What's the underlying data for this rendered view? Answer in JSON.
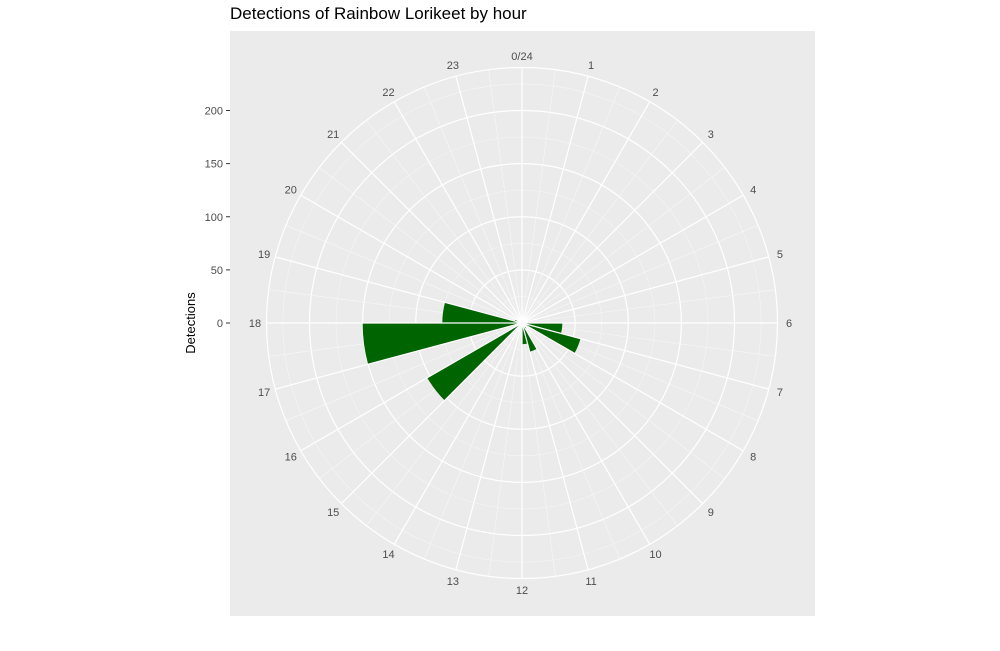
{
  "chart_data": {
    "type": "bar",
    "coordinate_system": "polar",
    "title": "Detections of Rainbow Lorikeet by hour",
    "xlabel": "",
    "ylabel": "Detections",
    "categories": [
      "0/24",
      "1",
      "2",
      "3",
      "4",
      "5",
      "6",
      "7",
      "8",
      "9",
      "10",
      "11",
      "12",
      "13",
      "14",
      "15",
      "16",
      "17",
      "18",
      "19",
      "20",
      "21",
      "22",
      "23"
    ],
    "bars": [
      {
        "hour": 6.5,
        "value": 38
      },
      {
        "hour": 7.5,
        "value": 57
      },
      {
        "hour": 9.5,
        "value": 6
      },
      {
        "hour": 10.5,
        "value": 28
      },
      {
        "hour": 11.5,
        "value": 20
      },
      {
        "hour": 15.5,
        "value": 103
      },
      {
        "hour": 17.5,
        "value": 150
      },
      {
        "hour": 18.5,
        "value": 75
      },
      {
        "hour": 19.5,
        "value": 7
      }
    ],
    "bar_width_hours": 1,
    "bar_color": "#006400",
    "y_ticks": [
      0,
      50,
      100,
      150,
      200
    ],
    "ylim": [
      0,
      240
    ],
    "grid": true,
    "background": "#ebebeb",
    "legend": "none"
  }
}
